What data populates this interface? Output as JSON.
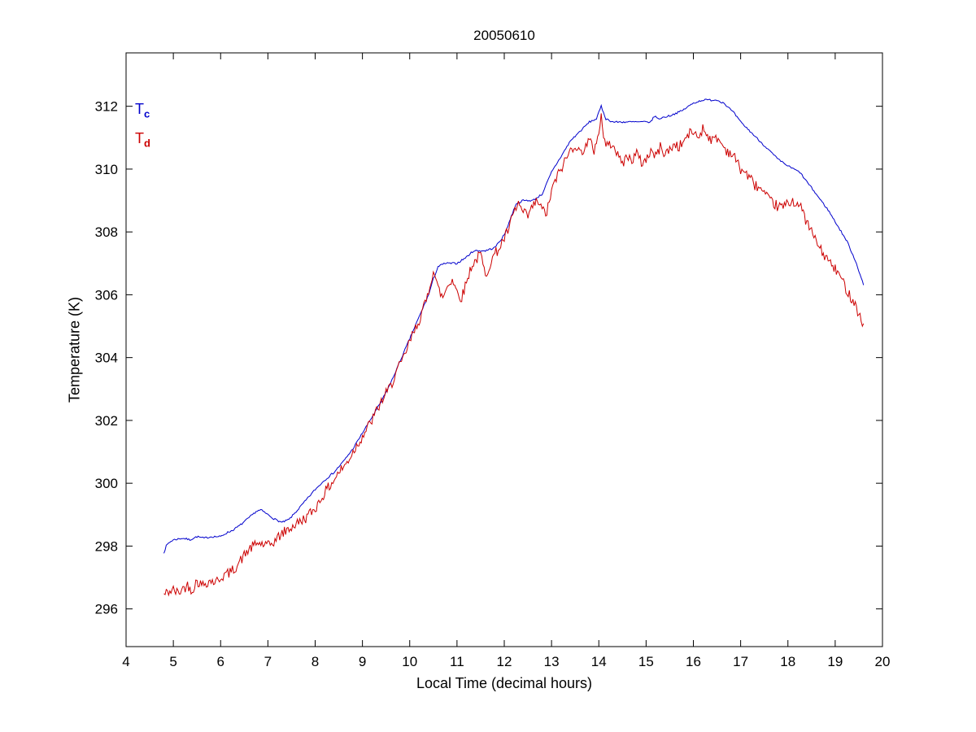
{
  "title": "20050610",
  "labels": {
    "tc": {
      "main": "T",
      "sub": "c",
      "color": "#0000cc"
    },
    "td": {
      "main": "T",
      "sub": "d",
      "color": "#cc0000"
    }
  },
  "chart_data": {
    "type": "line",
    "title": "20050610",
    "xlabel": "Local Time (decimal hours)",
    "ylabel": "Temperature (K)",
    "xlim": [
      4,
      20
    ],
    "ylim": [
      294.8,
      313.7
    ],
    "xticks": [
      4,
      5,
      6,
      7,
      8,
      9,
      10,
      11,
      12,
      13,
      14,
      15,
      16,
      17,
      18,
      19,
      20
    ],
    "yticks": [
      296,
      298,
      300,
      302,
      304,
      306,
      308,
      310,
      312
    ],
    "grid": false,
    "legend_position": "inside-top-left-text-annotations",
    "series": [
      {
        "name": "Tc",
        "color": "#0000cc",
        "noise": 0.03,
        "seed": 7,
        "points": [
          [
            4.8,
            297.8
          ],
          [
            4.85,
            298.0
          ],
          [
            4.9,
            298.1
          ],
          [
            5.0,
            298.2
          ],
          [
            5.2,
            298.25
          ],
          [
            5.35,
            298.2
          ],
          [
            5.5,
            298.3
          ],
          [
            5.65,
            298.25
          ],
          [
            5.8,
            298.3
          ],
          [
            6.0,
            298.3
          ],
          [
            6.1,
            298.4
          ],
          [
            6.25,
            298.5
          ],
          [
            6.4,
            298.65
          ],
          [
            6.6,
            298.9
          ],
          [
            6.75,
            299.1
          ],
          [
            6.85,
            299.15
          ],
          [
            7.0,
            299.0
          ],
          [
            7.15,
            298.85
          ],
          [
            7.3,
            298.75
          ],
          [
            7.45,
            298.85
          ],
          [
            7.6,
            299.1
          ],
          [
            7.8,
            299.45
          ],
          [
            8.0,
            299.8
          ],
          [
            8.2,
            300.1
          ],
          [
            8.4,
            300.35
          ],
          [
            8.6,
            300.7
          ],
          [
            8.8,
            301.1
          ],
          [
            9.0,
            301.6
          ],
          [
            9.2,
            302.1
          ],
          [
            9.4,
            302.6
          ],
          [
            9.6,
            303.2
          ],
          [
            9.8,
            303.9
          ],
          [
            10.0,
            304.6
          ],
          [
            10.2,
            305.3
          ],
          [
            10.4,
            306.0
          ],
          [
            10.5,
            306.5
          ],
          [
            10.6,
            306.9
          ],
          [
            10.75,
            307.0
          ],
          [
            11.0,
            307.0
          ],
          [
            11.2,
            307.2
          ],
          [
            11.35,
            307.4
          ],
          [
            11.6,
            307.4
          ],
          [
            11.8,
            307.5
          ],
          [
            12.0,
            307.9
          ],
          [
            12.15,
            308.5
          ],
          [
            12.25,
            308.9
          ],
          [
            12.4,
            309.0
          ],
          [
            12.6,
            309.0
          ],
          [
            12.8,
            309.2
          ],
          [
            13.0,
            309.9
          ],
          [
            13.2,
            310.4
          ],
          [
            13.4,
            310.9
          ],
          [
            13.6,
            311.2
          ],
          [
            13.8,
            311.5
          ],
          [
            13.95,
            311.6
          ],
          [
            14.05,
            312.0
          ],
          [
            14.15,
            311.6
          ],
          [
            14.3,
            311.5
          ],
          [
            14.6,
            311.5
          ],
          [
            14.9,
            311.5
          ],
          [
            15.1,
            311.5
          ],
          [
            15.18,
            311.7
          ],
          [
            15.25,
            311.6
          ],
          [
            15.5,
            311.7
          ],
          [
            15.75,
            311.85
          ],
          [
            16.0,
            312.1
          ],
          [
            16.2,
            312.2
          ],
          [
            16.5,
            312.2
          ],
          [
            16.65,
            312.1
          ],
          [
            16.85,
            311.8
          ],
          [
            17.0,
            311.5
          ],
          [
            17.2,
            311.2
          ],
          [
            17.4,
            310.9
          ],
          [
            17.6,
            310.6
          ],
          [
            17.8,
            310.3
          ],
          [
            18.0,
            310.1
          ],
          [
            18.25,
            309.9
          ],
          [
            18.45,
            309.5
          ],
          [
            18.65,
            309.1
          ],
          [
            18.85,
            308.7
          ],
          [
            19.05,
            308.2
          ],
          [
            19.25,
            307.7
          ],
          [
            19.45,
            307.0
          ],
          [
            19.6,
            306.3
          ]
        ]
      },
      {
        "name": "Td",
        "color": "#cc0000",
        "noise": 0.17,
        "seed": 42,
        "points": [
          [
            4.8,
            296.45
          ],
          [
            4.9,
            296.55
          ],
          [
            5.0,
            296.6
          ],
          [
            5.1,
            296.5
          ],
          [
            5.2,
            296.65
          ],
          [
            5.3,
            296.75
          ],
          [
            5.4,
            296.6
          ],
          [
            5.5,
            296.9
          ],
          [
            5.6,
            296.75
          ],
          [
            5.7,
            296.85
          ],
          [
            5.8,
            296.9
          ],
          [
            5.9,
            296.85
          ],
          [
            6.0,
            297.0
          ],
          [
            6.1,
            297.1
          ],
          [
            6.2,
            297.15
          ],
          [
            6.3,
            297.3
          ],
          [
            6.4,
            297.5
          ],
          [
            6.5,
            297.7
          ],
          [
            6.6,
            297.9
          ],
          [
            6.7,
            298.0
          ],
          [
            6.8,
            298.1
          ],
          [
            6.9,
            298.05
          ],
          [
            7.0,
            298.0
          ],
          [
            7.1,
            298.1
          ],
          [
            7.2,
            298.25
          ],
          [
            7.3,
            298.4
          ],
          [
            7.4,
            298.5
          ],
          [
            7.5,
            298.6
          ],
          [
            7.6,
            298.7
          ],
          [
            7.8,
            298.9
          ],
          [
            8.0,
            299.2
          ],
          [
            8.2,
            299.7
          ],
          [
            8.35,
            300.0
          ],
          [
            8.5,
            300.35
          ],
          [
            8.65,
            300.6
          ],
          [
            8.8,
            301.0
          ],
          [
            9.0,
            301.5
          ],
          [
            9.2,
            302.0
          ],
          [
            9.4,
            302.6
          ],
          [
            9.6,
            303.1
          ],
          [
            9.7,
            303.5
          ],
          [
            9.85,
            303.9
          ],
          [
            10.0,
            304.5
          ],
          [
            10.2,
            305.2
          ],
          [
            10.35,
            305.8
          ],
          [
            10.5,
            306.8
          ],
          [
            10.6,
            306.2
          ],
          [
            10.7,
            305.9
          ],
          [
            10.8,
            306.3
          ],
          [
            10.9,
            306.5
          ],
          [
            11.0,
            306.1
          ],
          [
            11.1,
            305.9
          ],
          [
            11.2,
            306.4
          ],
          [
            11.3,
            306.9
          ],
          [
            11.4,
            307.1
          ],
          [
            11.5,
            307.3
          ],
          [
            11.6,
            306.6
          ],
          [
            11.7,
            307.0
          ],
          [
            11.8,
            307.3
          ],
          [
            11.9,
            307.5
          ],
          [
            12.0,
            307.8
          ],
          [
            12.1,
            308.1
          ],
          [
            12.2,
            308.6
          ],
          [
            12.3,
            308.9
          ],
          [
            12.4,
            308.6
          ],
          [
            12.5,
            308.5
          ],
          [
            12.6,
            308.8
          ],
          [
            12.7,
            309.0
          ],
          [
            12.8,
            308.7
          ],
          [
            12.9,
            308.6
          ],
          [
            13.0,
            309.3
          ],
          [
            13.1,
            309.7
          ],
          [
            13.2,
            310.0
          ],
          [
            13.3,
            310.3
          ],
          [
            13.4,
            310.6
          ],
          [
            13.5,
            310.8
          ],
          [
            13.6,
            310.5
          ],
          [
            13.7,
            310.7
          ],
          [
            13.8,
            310.9
          ],
          [
            13.9,
            310.6
          ],
          [
            14.0,
            311.2
          ],
          [
            14.05,
            311.7
          ],
          [
            14.1,
            311.0
          ],
          [
            14.2,
            310.7
          ],
          [
            14.3,
            310.9
          ],
          [
            14.4,
            310.4
          ],
          [
            14.5,
            310.2
          ],
          [
            14.6,
            310.4
          ],
          [
            14.7,
            310.3
          ],
          [
            14.8,
            310.5
          ],
          [
            14.9,
            310.2
          ],
          [
            15.0,
            310.3
          ],
          [
            15.1,
            310.6
          ],
          [
            15.2,
            310.4
          ],
          [
            15.3,
            310.7
          ],
          [
            15.4,
            310.5
          ],
          [
            15.5,
            310.6
          ],
          [
            15.6,
            310.8
          ],
          [
            15.7,
            310.7
          ],
          [
            15.8,
            310.9
          ],
          [
            15.9,
            311.1
          ],
          [
            16.0,
            311.2
          ],
          [
            16.1,
            311.0
          ],
          [
            16.2,
            311.3
          ],
          [
            16.3,
            311.1
          ],
          [
            16.4,
            310.9
          ],
          [
            16.5,
            311.0
          ],
          [
            16.6,
            310.8
          ],
          [
            16.7,
            310.6
          ],
          [
            16.8,
            310.5
          ],
          [
            16.9,
            310.3
          ],
          [
            17.0,
            310.0
          ],
          [
            17.1,
            309.9
          ],
          [
            17.2,
            309.7
          ],
          [
            17.3,
            309.5
          ],
          [
            17.4,
            309.4
          ],
          [
            17.5,
            309.2
          ],
          [
            17.6,
            309.0
          ],
          [
            17.7,
            308.9
          ],
          [
            17.8,
            308.8
          ],
          [
            17.9,
            308.8
          ],
          [
            18.0,
            308.9
          ],
          [
            18.1,
            309.0
          ],
          [
            18.2,
            308.9
          ],
          [
            18.3,
            308.7
          ],
          [
            18.4,
            308.3
          ],
          [
            18.5,
            308.0
          ],
          [
            18.6,
            307.7
          ],
          [
            18.7,
            307.4
          ],
          [
            18.8,
            307.2
          ],
          [
            18.9,
            307.0
          ],
          [
            19.0,
            306.8
          ],
          [
            19.1,
            306.6
          ],
          [
            19.2,
            306.3
          ],
          [
            19.3,
            306.0
          ],
          [
            19.4,
            305.8
          ],
          [
            19.5,
            305.4
          ],
          [
            19.6,
            305.0
          ]
        ]
      }
    ]
  }
}
